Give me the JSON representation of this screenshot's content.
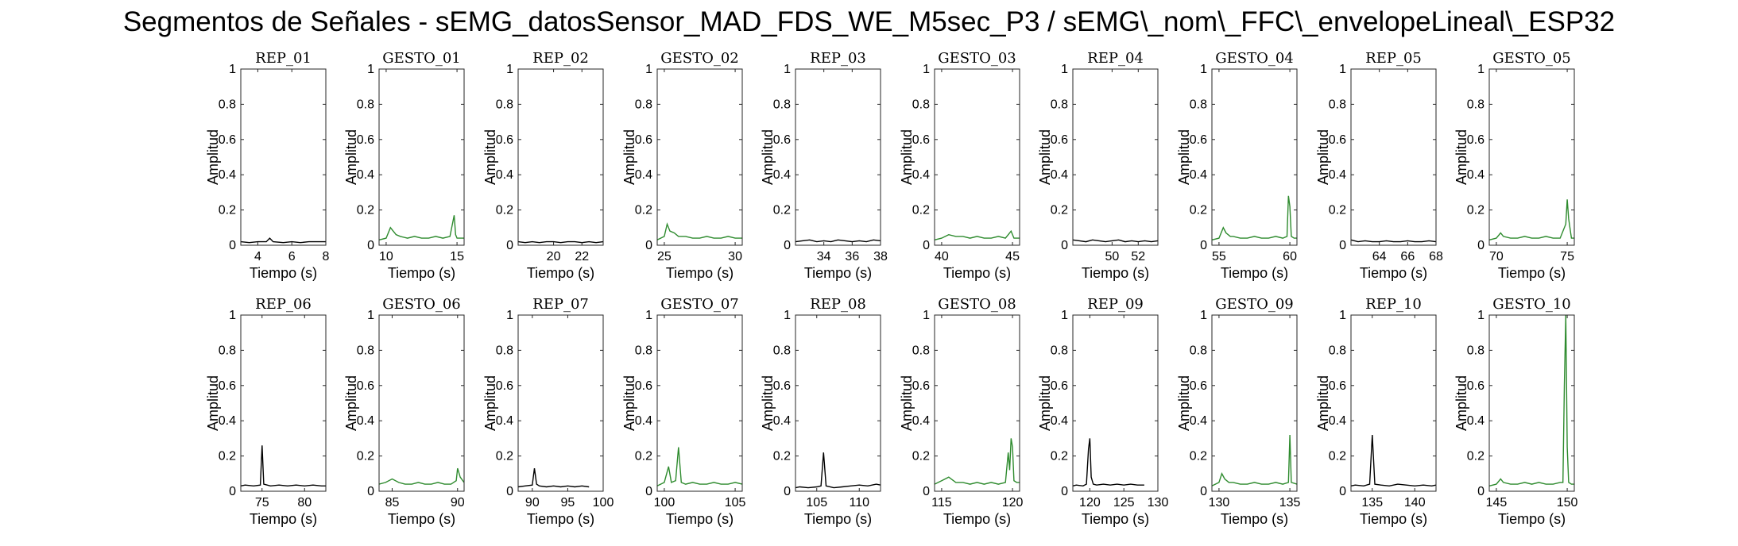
{
  "title": "Segmentos de Señales - sEMG_datosSensor_MAD_FDS_WE_M5sec_P3 / sEMG\\_nom\\_FFC\\_envelopeLineal\\_ESP32",
  "colors": {
    "rep": "#000000",
    "gesto": "#2e8b2e"
  },
  "chart_data": [
    {
      "type": "line",
      "title": "REP_01",
      "xlabel": "Tiempo (s)",
      "ylabel": "Amplitud",
      "xlim": [
        3,
        8
      ],
      "ylim": [
        0,
        1
      ],
      "xticks": [
        4,
        6,
        8
      ],
      "yticks": [
        0,
        0.2,
        0.4,
        0.6,
        0.8,
        1
      ],
      "color": "rep",
      "x": [
        3,
        3.5,
        4,
        4.5,
        4.7,
        4.9,
        5.5,
        6,
        6.5,
        7,
        7.5,
        8
      ],
      "y": [
        0.02,
        0.015,
        0.02,
        0.02,
        0.04,
        0.02,
        0.015,
        0.02,
        0.015,
        0.02,
        0.02,
        0.02
      ]
    },
    {
      "type": "line",
      "title": "GESTO_01",
      "xlabel": "Tiempo (s)",
      "ylabel": "Amplitud",
      "xlim": [
        9.5,
        15.5
      ],
      "ylim": [
        0,
        1
      ],
      "xticks": [
        10,
        15
      ],
      "yticks": [
        0,
        0.2,
        0.4,
        0.6,
        0.8,
        1
      ],
      "color": "gesto",
      "x": [
        9.5,
        10,
        10.3,
        10.5,
        10.7,
        11,
        11.5,
        12,
        12.5,
        13,
        13.5,
        14,
        14.5,
        14.8,
        14.9,
        15,
        15.5
      ],
      "y": [
        0.03,
        0.04,
        0.1,
        0.08,
        0.06,
        0.05,
        0.04,
        0.05,
        0.04,
        0.04,
        0.05,
        0.04,
        0.05,
        0.17,
        0.06,
        0.04,
        0.04
      ]
    },
    {
      "type": "line",
      "title": "REP_02",
      "xlabel": "Tiempo (s)",
      "ylabel": "Amplitud",
      "xlim": [
        17.5,
        23.5
      ],
      "ylim": [
        0,
        1
      ],
      "xticks": [
        20,
        22
      ],
      "yticks": [
        0,
        0.2,
        0.4,
        0.6,
        0.8,
        1
      ],
      "color": "rep",
      "x": [
        17.5,
        18,
        18.5,
        19,
        19.5,
        20,
        20.5,
        21,
        21.5,
        22,
        22.5,
        23,
        23.5
      ],
      "y": [
        0.02,
        0.015,
        0.02,
        0.015,
        0.02,
        0.02,
        0.015,
        0.02,
        0.02,
        0.015,
        0.02,
        0.015,
        0.02
      ]
    },
    {
      "type": "line",
      "title": "GESTO_02",
      "xlabel": "Tiempo (s)",
      "ylabel": "Amplitud",
      "xlim": [
        24.5,
        30.5
      ],
      "ylim": [
        0,
        1
      ],
      "xticks": [
        25,
        30
      ],
      "yticks": [
        0,
        0.2,
        0.4,
        0.6,
        0.8,
        1
      ],
      "color": "gesto",
      "x": [
        24.5,
        25,
        25.2,
        25.4,
        25.7,
        26,
        26.5,
        27,
        27.5,
        28,
        28.5,
        29,
        29.5,
        30,
        30.5
      ],
      "y": [
        0.03,
        0.05,
        0.12,
        0.08,
        0.07,
        0.05,
        0.05,
        0.04,
        0.04,
        0.05,
        0.04,
        0.04,
        0.05,
        0.04,
        0.04
      ]
    },
    {
      "type": "line",
      "title": "REP_03",
      "xlabel": "Tiempo (s)",
      "ylabel": "Amplitud",
      "xlim": [
        32,
        38
      ],
      "ylim": [
        0,
        1
      ],
      "xticks": [
        34,
        36,
        38
      ],
      "yticks": [
        0,
        0.2,
        0.4,
        0.6,
        0.8,
        1
      ],
      "color": "rep",
      "x": [
        32,
        32.5,
        33,
        33.5,
        34,
        34.5,
        35,
        35.5,
        36,
        36.5,
        37,
        37.5,
        38
      ],
      "y": [
        0.02,
        0.025,
        0.03,
        0.02,
        0.025,
        0.02,
        0.03,
        0.025,
        0.02,
        0.025,
        0.02,
        0.03,
        0.025
      ]
    },
    {
      "type": "line",
      "title": "GESTO_03",
      "xlabel": "Tiempo (s)",
      "ylabel": "Amplitud",
      "xlim": [
        39.5,
        45.5
      ],
      "ylim": [
        0,
        1
      ],
      "xticks": [
        40,
        45
      ],
      "yticks": [
        0,
        0.2,
        0.4,
        0.6,
        0.8,
        1
      ],
      "color": "gesto",
      "x": [
        39.5,
        40,
        40.5,
        41,
        41.5,
        42,
        42.5,
        43,
        43.5,
        44,
        44.5,
        44.9,
        45.1,
        45.5
      ],
      "y": [
        0.03,
        0.04,
        0.06,
        0.05,
        0.05,
        0.04,
        0.05,
        0.04,
        0.04,
        0.05,
        0.04,
        0.08,
        0.04,
        0.04
      ]
    },
    {
      "type": "line",
      "title": "REP_04",
      "xlabel": "Tiempo (s)",
      "ylabel": "Amplitud",
      "xlim": [
        47,
        53.5
      ],
      "ylim": [
        0,
        1
      ],
      "xticks": [
        50,
        52
      ],
      "yticks": [
        0,
        0.2,
        0.4,
        0.6,
        0.8,
        1
      ],
      "color": "rep",
      "x": [
        47,
        47.5,
        48,
        48.5,
        49,
        49.5,
        50,
        50.5,
        51,
        51.5,
        52,
        52.5,
        53,
        53.5
      ],
      "y": [
        0.03,
        0.025,
        0.02,
        0.03,
        0.025,
        0.02,
        0.025,
        0.03,
        0.02,
        0.025,
        0.02,
        0.025,
        0.02,
        0.025
      ]
    },
    {
      "type": "line",
      "title": "GESTO_04",
      "xlabel": "Tiempo (s)",
      "ylabel": "Amplitud",
      "xlim": [
        54.5,
        60.5
      ],
      "ylim": [
        0,
        1
      ],
      "xticks": [
        55,
        60
      ],
      "yticks": [
        0,
        0.2,
        0.4,
        0.6,
        0.8,
        1
      ],
      "color": "gesto",
      "x": [
        54.5,
        55,
        55.3,
        55.5,
        55.8,
        56,
        56.5,
        57,
        57.5,
        58,
        58.5,
        59,
        59.5,
        59.8,
        59.9,
        60,
        60.1,
        60.3,
        60.5
      ],
      "y": [
        0.03,
        0.04,
        0.1,
        0.07,
        0.05,
        0.05,
        0.04,
        0.04,
        0.05,
        0.04,
        0.04,
        0.05,
        0.04,
        0.05,
        0.28,
        0.22,
        0.05,
        0.04,
        0.04
      ]
    },
    {
      "type": "line",
      "title": "REP_05",
      "xlabel": "Tiempo (s)",
      "ylabel": "Amplitud",
      "xlim": [
        62,
        68
      ],
      "ylim": [
        0,
        1
      ],
      "xticks": [
        64,
        66,
        68
      ],
      "yticks": [
        0,
        0.2,
        0.4,
        0.6,
        0.8,
        1
      ],
      "color": "rep",
      "x": [
        62,
        62.5,
        63,
        63.5,
        64,
        64.5,
        65,
        65.5,
        66,
        66.5,
        67,
        67.5,
        68
      ],
      "y": [
        0.03,
        0.02,
        0.025,
        0.02,
        0.02,
        0.025,
        0.02,
        0.02,
        0.025,
        0.02,
        0.02,
        0.025,
        0.02
      ]
    },
    {
      "type": "line",
      "title": "GESTO_05",
      "xlabel": "Tiempo (s)",
      "ylabel": "Amplitud",
      "xlim": [
        69.5,
        75.5
      ],
      "ylim": [
        0,
        1
      ],
      "xticks": [
        70,
        75
      ],
      "yticks": [
        0,
        0.2,
        0.4,
        0.6,
        0.8,
        1
      ],
      "color": "gesto",
      "x": [
        69.5,
        70,
        70.3,
        70.5,
        71,
        71.5,
        72,
        72.5,
        73,
        73.5,
        74,
        74.5,
        74.9,
        75,
        75.1,
        75.3,
        75.5
      ],
      "y": [
        0.03,
        0.04,
        0.07,
        0.05,
        0.04,
        0.04,
        0.05,
        0.04,
        0.04,
        0.05,
        0.04,
        0.04,
        0.12,
        0.26,
        0.15,
        0.04,
        0.04
      ]
    },
    {
      "type": "line",
      "title": "REP_06",
      "xlabel": "Tiempo (s)",
      "ylabel": "Amplitud",
      "xlim": [
        72.5,
        82.5
      ],
      "ylim": [
        0,
        1
      ],
      "xticks": [
        75,
        80
      ],
      "yticks": [
        0,
        0.2,
        0.4,
        0.6,
        0.8,
        1
      ],
      "color": "rep",
      "x": [
        72.5,
        73,
        74,
        74.8,
        75,
        75.2,
        76,
        77,
        78,
        79,
        80,
        81,
        82,
        82.5
      ],
      "y": [
        0.03,
        0.035,
        0.03,
        0.035,
        0.26,
        0.04,
        0.03,
        0.035,
        0.03,
        0.035,
        0.03,
        0.035,
        0.03,
        0.03
      ]
    },
    {
      "type": "line",
      "title": "GESTO_06",
      "xlabel": "Tiempo (s)",
      "ylabel": "Amplitud",
      "xlim": [
        84,
        90.5
      ],
      "ylim": [
        0,
        1
      ],
      "xticks": [
        85,
        90
      ],
      "yticks": [
        0,
        0.2,
        0.4,
        0.6,
        0.8,
        1
      ],
      "color": "gesto",
      "x": [
        84,
        84.5,
        85,
        85.5,
        86,
        86.5,
        87,
        87.5,
        88,
        88.5,
        89,
        89.5,
        89.9,
        90,
        90.2,
        90.5
      ],
      "y": [
        0.04,
        0.05,
        0.07,
        0.05,
        0.04,
        0.04,
        0.05,
        0.04,
        0.04,
        0.05,
        0.04,
        0.04,
        0.06,
        0.13,
        0.08,
        0.05
      ]
    },
    {
      "type": "line",
      "title": "REP_07",
      "xlabel": "Tiempo (s)",
      "ylabel": "Amplitud",
      "xlim": [
        88,
        100
      ],
      "ylim": [
        0,
        1
      ],
      "xticks": [
        90,
        95,
        100
      ],
      "yticks": [
        0,
        0.2,
        0.4,
        0.6,
        0.8,
        1
      ],
      "color": "rep",
      "x": [
        88,
        89,
        90,
        90.3,
        90.6,
        91,
        92,
        93,
        94,
        95,
        96,
        97,
        98
      ],
      "y": [
        0.025,
        0.03,
        0.035,
        0.13,
        0.04,
        0.03,
        0.025,
        0.03,
        0.025,
        0.03,
        0.025,
        0.03,
        0.025
      ]
    },
    {
      "type": "line",
      "title": "GESTO_07",
      "xlabel": "Tiempo (s)",
      "ylabel": "Amplitud",
      "xlim": [
        99.5,
        105.5
      ],
      "ylim": [
        0,
        1
      ],
      "xticks": [
        100,
        105
      ],
      "yticks": [
        0,
        0.2,
        0.4,
        0.6,
        0.8,
        1
      ],
      "color": "gesto",
      "x": [
        99.5,
        100,
        100.3,
        100.5,
        100.8,
        101,
        101.2,
        101.5,
        102,
        102.5,
        103,
        103.5,
        104,
        104.5,
        105,
        105.5
      ],
      "y": [
        0.03,
        0.05,
        0.14,
        0.05,
        0.06,
        0.25,
        0.05,
        0.04,
        0.05,
        0.04,
        0.04,
        0.05,
        0.04,
        0.04,
        0.05,
        0.04
      ]
    },
    {
      "type": "line",
      "title": "REP_08",
      "xlabel": "Tiempo (s)",
      "ylabel": "Amplitud",
      "xlim": [
        102.5,
        112.5
      ],
      "ylim": [
        0,
        1
      ],
      "xticks": [
        105,
        110
      ],
      "yticks": [
        0,
        0.2,
        0.4,
        0.6,
        0.8,
        1
      ],
      "color": "rep",
      "x": [
        102.5,
        103,
        104,
        105,
        105.5,
        105.8,
        106.1,
        107,
        108,
        109,
        110,
        111,
        112,
        112.5
      ],
      "y": [
        0.02,
        0.025,
        0.02,
        0.025,
        0.03,
        0.22,
        0.03,
        0.02,
        0.025,
        0.03,
        0.035,
        0.03,
        0.04,
        0.035
      ]
    },
    {
      "type": "line",
      "title": "GESTO_08",
      "xlabel": "Tiempo (s)",
      "ylabel": "Amplitud",
      "xlim": [
        114.5,
        120.5
      ],
      "ylim": [
        0,
        1
      ],
      "xticks": [
        115,
        120
      ],
      "yticks": [
        0,
        0.2,
        0.4,
        0.6,
        0.8,
        1
      ],
      "color": "gesto",
      "x": [
        114.5,
        115,
        115.5,
        116,
        116.5,
        117,
        117.5,
        118,
        118.5,
        119,
        119.5,
        119.7,
        119.8,
        119.9,
        120,
        120.1,
        120.3,
        120.5
      ],
      "y": [
        0.04,
        0.06,
        0.08,
        0.05,
        0.05,
        0.04,
        0.05,
        0.04,
        0.05,
        0.04,
        0.05,
        0.22,
        0.12,
        0.3,
        0.25,
        0.06,
        0.05,
        0.05
      ]
    },
    {
      "type": "line",
      "title": "REP_09",
      "xlabel": "Tiempo (s)",
      "ylabel": "Amplitud",
      "xlim": [
        117.5,
        130
      ],
      "ylim": [
        0,
        1
      ],
      "xticks": [
        120,
        125,
        130
      ],
      "yticks": [
        0,
        0.2,
        0.4,
        0.6,
        0.8,
        1
      ],
      "color": "rep",
      "x": [
        117.5,
        118,
        119,
        119.5,
        119.8,
        120,
        120.2,
        120.5,
        121,
        122,
        123,
        124,
        125,
        126,
        127,
        128
      ],
      "y": [
        0.03,
        0.035,
        0.03,
        0.04,
        0.24,
        0.3,
        0.08,
        0.04,
        0.035,
        0.04,
        0.035,
        0.04,
        0.035,
        0.04,
        0.035,
        0.035
      ]
    },
    {
      "type": "line",
      "title": "GESTO_09",
      "xlabel": "Tiempo (s)",
      "ylabel": "Amplitud",
      "xlim": [
        129.5,
        135.5
      ],
      "ylim": [
        0,
        1
      ],
      "xticks": [
        130,
        135
      ],
      "yticks": [
        0,
        0.2,
        0.4,
        0.6,
        0.8,
        1
      ],
      "color": "gesto",
      "x": [
        129.5,
        130,
        130.2,
        130.4,
        130.7,
        131,
        131.5,
        132,
        132.5,
        133,
        133.5,
        134,
        134.5,
        134.9,
        135,
        135.1,
        135.5
      ],
      "y": [
        0.03,
        0.05,
        0.1,
        0.07,
        0.05,
        0.05,
        0.04,
        0.04,
        0.05,
        0.04,
        0.04,
        0.05,
        0.04,
        0.05,
        0.32,
        0.05,
        0.04
      ]
    },
    {
      "type": "line",
      "title": "REP_10",
      "xlabel": "Tiempo (s)",
      "ylabel": "Amplitud",
      "xlim": [
        132.5,
        142.5
      ],
      "ylim": [
        0,
        1
      ],
      "xticks": [
        135,
        140
      ],
      "yticks": [
        0,
        0.2,
        0.4,
        0.6,
        0.8,
        1
      ],
      "color": "rep",
      "x": [
        132.5,
        133,
        134,
        134.7,
        135,
        135.3,
        136,
        137,
        138,
        139,
        140,
        141,
        142,
        142.5
      ],
      "y": [
        0.03,
        0.035,
        0.03,
        0.04,
        0.32,
        0.04,
        0.035,
        0.03,
        0.04,
        0.035,
        0.03,
        0.035,
        0.03,
        0.035
      ]
    },
    {
      "type": "line",
      "title": "GESTO_10",
      "xlabel": "Tiempo (s)",
      "ylabel": "Amplitud",
      "xlim": [
        144.5,
        150.5
      ],
      "ylim": [
        0,
        1
      ],
      "xticks": [
        145,
        150
      ],
      "yticks": [
        0,
        0.2,
        0.4,
        0.6,
        0.8,
        1
      ],
      "color": "gesto",
      "x": [
        144.5,
        145,
        145.3,
        145.5,
        146,
        146.5,
        147,
        147.5,
        148,
        148.5,
        149,
        149.5,
        149.7,
        149.8,
        149.9,
        150,
        150.1,
        150.3,
        150.5
      ],
      "y": [
        0.03,
        0.04,
        0.07,
        0.05,
        0.04,
        0.04,
        0.05,
        0.04,
        0.05,
        0.04,
        0.04,
        0.05,
        0.05,
        0.6,
        1.0,
        0.25,
        0.05,
        0.04,
        0.04
      ]
    }
  ]
}
